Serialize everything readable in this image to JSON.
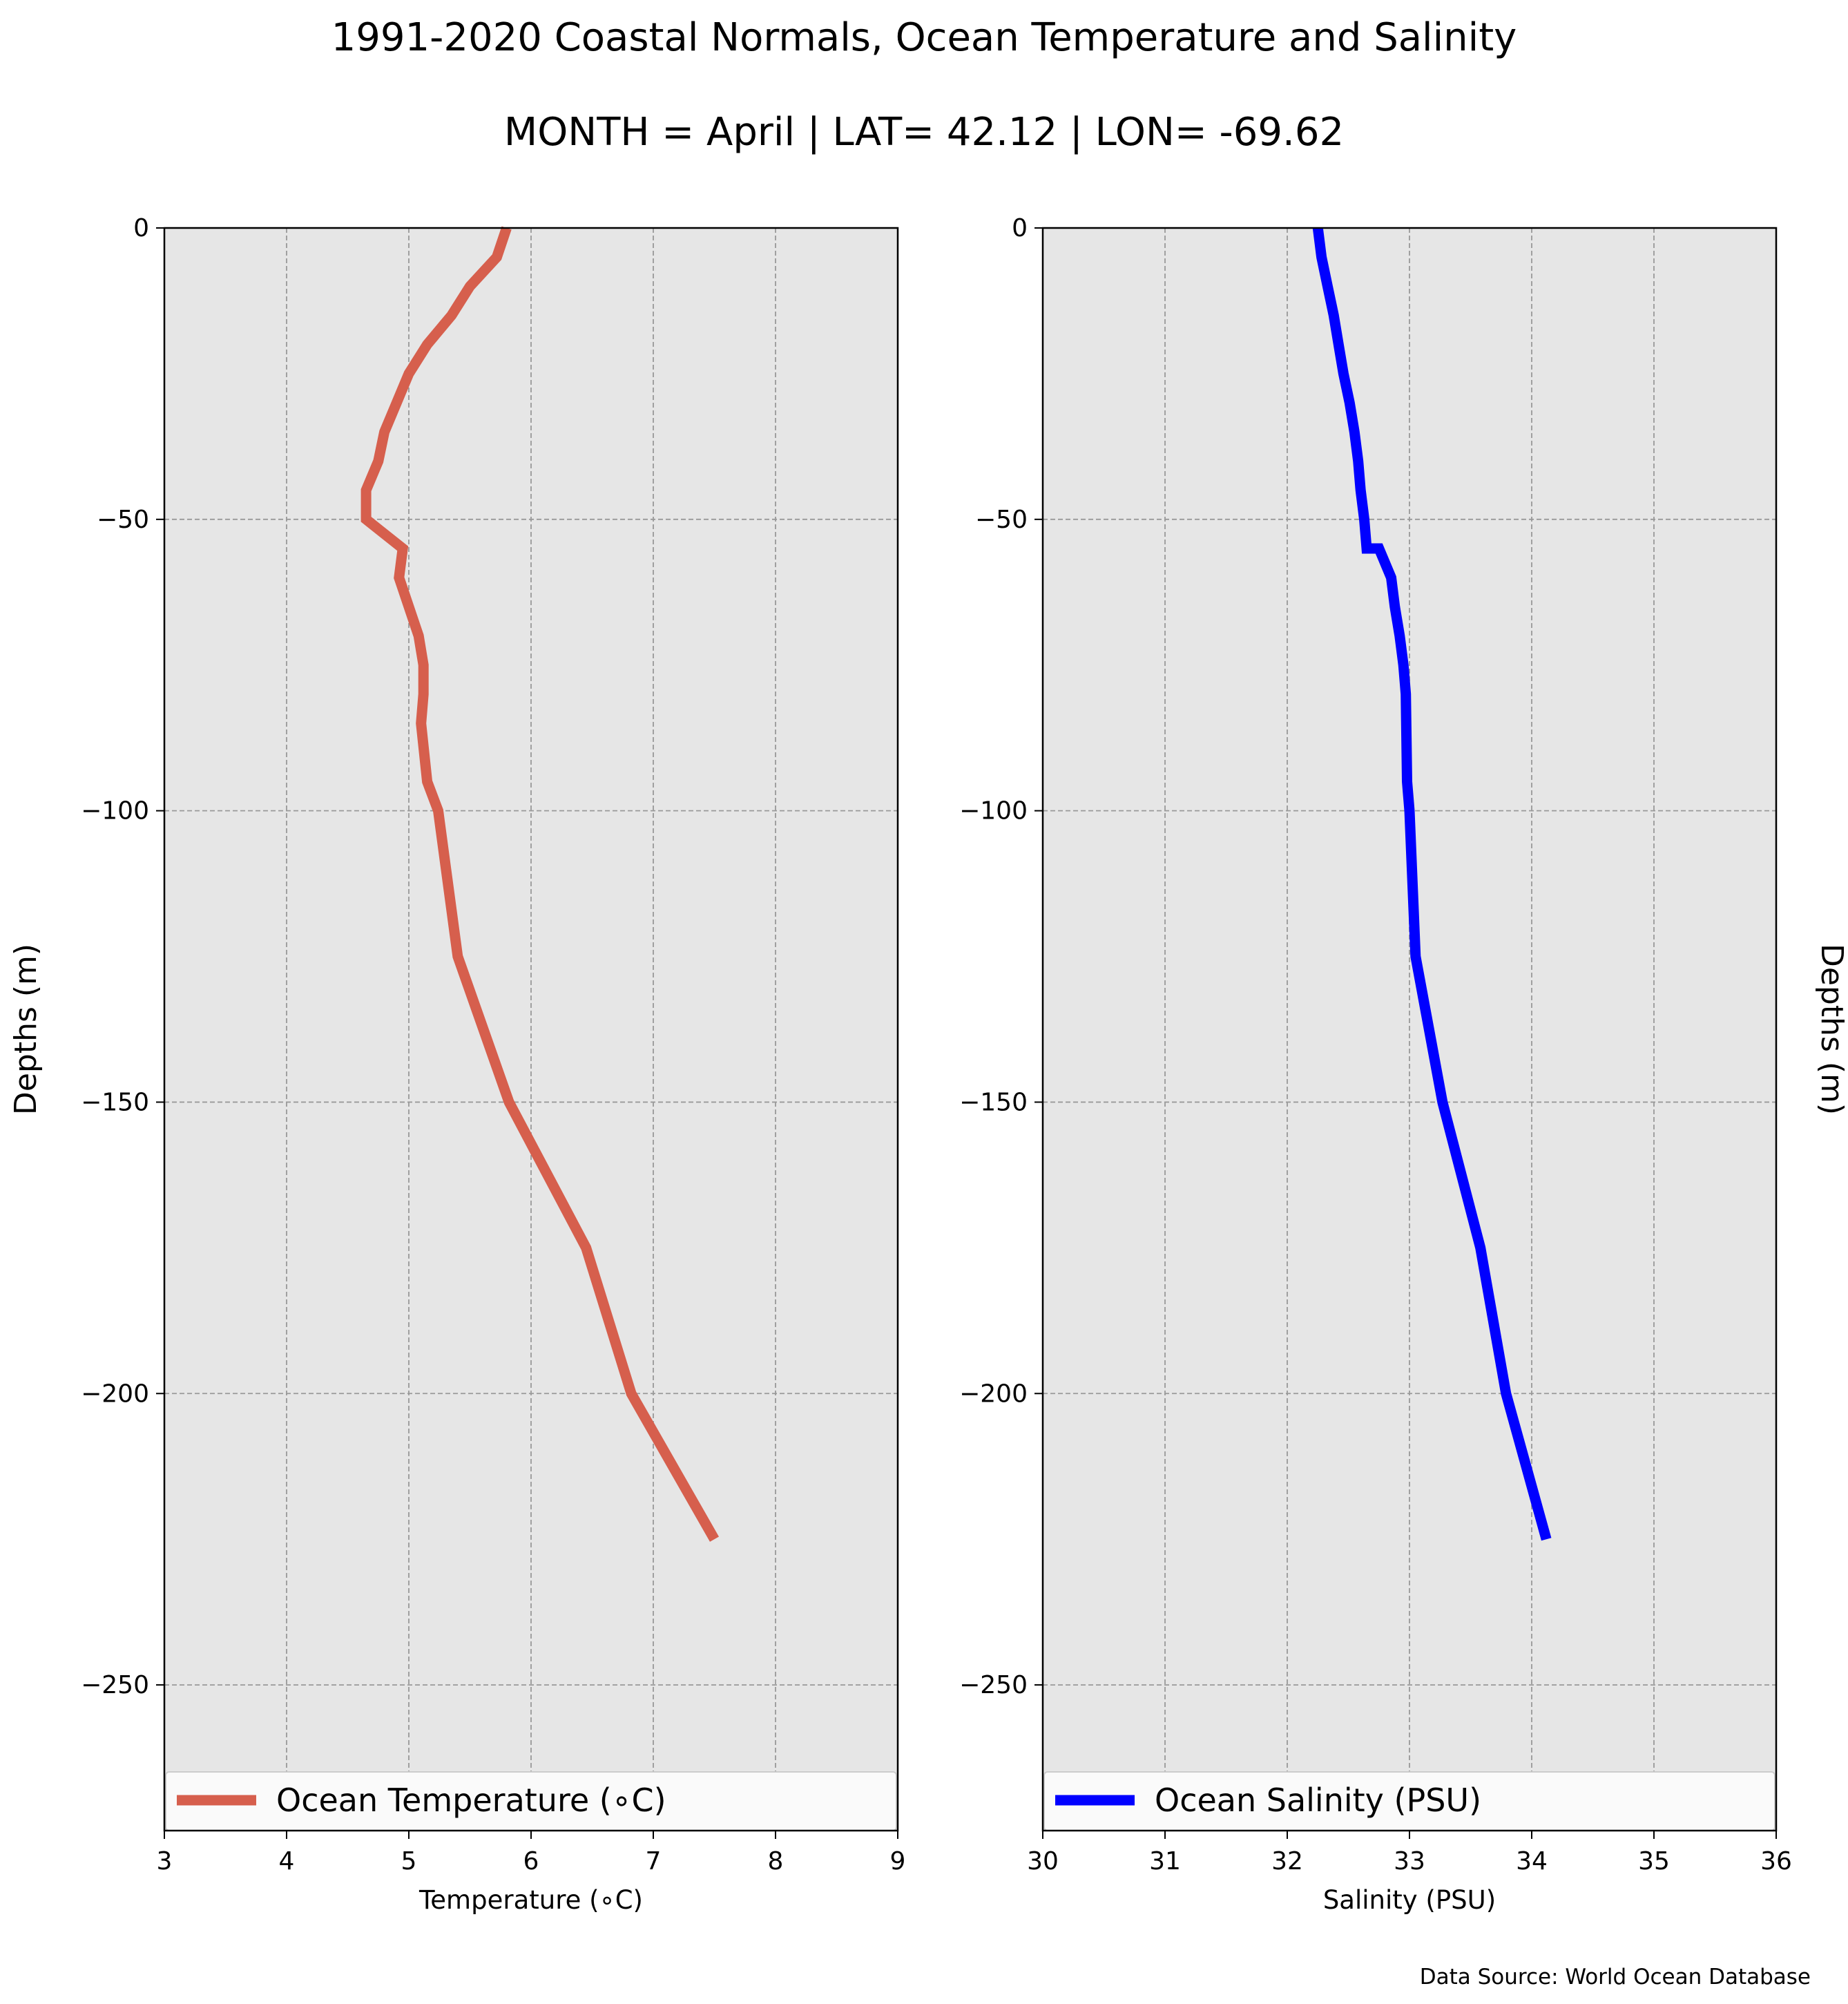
{
  "title": "1991-2020 Coastal Normals, Ocean Temperature and Salinity",
  "subtitle": "MONTH = April | LAT= 42.12 | LON= -69.62",
  "source": "Data Source: World Ocean Database",
  "colors": {
    "temperature": "#d65f4d",
    "salinity": "#0000ff",
    "panel_bg": "#e6e6e6",
    "grid": "#999999"
  },
  "chart_data": [
    {
      "type": "line",
      "xlabel": "Temperature (∘C)",
      "ylabel": "Depths (m)",
      "ylabel_side": "left",
      "xlim": [
        3,
        9
      ],
      "ylim": [
        -275,
        0
      ],
      "xticks": [
        "3",
        "4",
        "5",
        "6",
        "7",
        "8",
        "9"
      ],
      "yticks": [
        "0",
        "−50",
        "−100",
        "−150",
        "−200",
        "−250"
      ],
      "ytick_values": [
        0,
        -50,
        -100,
        -150,
        -200,
        -250
      ],
      "grid": true,
      "legend": "lower-center",
      "series": [
        {
          "name": "Ocean Temperature (∘C)",
          "color": "#d65f4d",
          "x": [
            5.8,
            5.72,
            5.5,
            5.35,
            5.15,
            5.0,
            4.9,
            4.8,
            4.75,
            4.65,
            4.65,
            4.95,
            4.92,
            5.0,
            5.08,
            5.12,
            5.12,
            5.1,
            5.15,
            5.24,
            5.4,
            5.82,
            6.45,
            6.82,
            7.5
          ],
          "y": [
            0,
            -5,
            -10,
            -15,
            -20,
            -25,
            -30,
            -35,
            -40,
            -45,
            -50,
            -55,
            -60,
            -65,
            -70,
            -75,
            -80,
            -85,
            -95,
            -100,
            -125,
            -150,
            -175,
            -200,
            -225
          ]
        }
      ]
    },
    {
      "type": "line",
      "xlabel": "Salinity (PSU)",
      "ylabel": "Depths (m)",
      "ylabel_side": "right",
      "xlim": [
        30,
        36
      ],
      "ylim": [
        -275,
        0
      ],
      "xticks": [
        "30",
        "31",
        "32",
        "33",
        "34",
        "35",
        "36"
      ],
      "yticks": [
        "0",
        "−50",
        "−100",
        "−150",
        "−200",
        "−250"
      ],
      "ytick_values": [
        0,
        -50,
        -100,
        -150,
        -200,
        -250
      ],
      "grid": true,
      "legend": "lower-center",
      "series": [
        {
          "name": "Ocean Salinity (PSU)",
          "color": "#0000ff",
          "x": [
            32.25,
            32.28,
            32.33,
            32.38,
            32.42,
            32.46,
            32.51,
            32.55,
            32.58,
            32.6,
            32.63,
            32.65,
            32.75,
            32.85,
            32.88,
            32.92,
            32.95,
            32.97,
            32.98,
            33.0,
            33.05,
            33.27,
            33.58,
            33.79,
            34.12
          ],
          "y": [
            0,
            -5,
            -10,
            -15,
            -20,
            -25,
            -30,
            -35,
            -40,
            -45,
            -50,
            -55,
            -55,
            -60,
            -65,
            -70,
            -75,
            -80,
            -95,
            -100,
            -125,
            -150,
            -175,
            -200,
            -225
          ]
        }
      ]
    }
  ]
}
